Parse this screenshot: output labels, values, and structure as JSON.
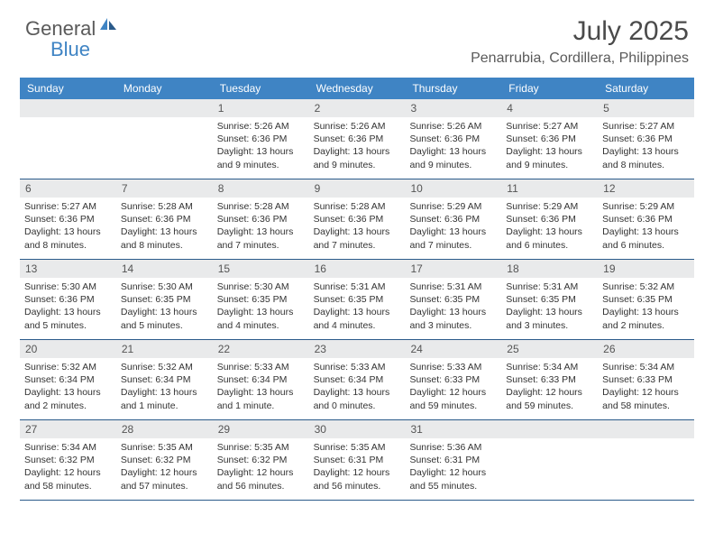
{
  "brand": {
    "part1": "General",
    "part2": "Blue"
  },
  "title": "July 2025",
  "location": "Penarrubia, Cordillera, Philippines",
  "colors": {
    "header_bg": "#3f84c4",
    "header_text": "#ffffff",
    "daynum_bg": "#e9eaeb",
    "rule": "#2a5a8a",
    "text": "#333333",
    "logo_gray": "#5a5a5a",
    "logo_blue": "#3f84c4"
  },
  "day_labels": [
    "Sunday",
    "Monday",
    "Tuesday",
    "Wednesday",
    "Thursday",
    "Friday",
    "Saturday"
  ],
  "weeks": [
    [
      null,
      null,
      {
        "n": "1",
        "sr": "5:26 AM",
        "ss": "6:36 PM",
        "dl": "13 hours and 9 minutes."
      },
      {
        "n": "2",
        "sr": "5:26 AM",
        "ss": "6:36 PM",
        "dl": "13 hours and 9 minutes."
      },
      {
        "n": "3",
        "sr": "5:26 AM",
        "ss": "6:36 PM",
        "dl": "13 hours and 9 minutes."
      },
      {
        "n": "4",
        "sr": "5:27 AM",
        "ss": "6:36 PM",
        "dl": "13 hours and 9 minutes."
      },
      {
        "n": "5",
        "sr": "5:27 AM",
        "ss": "6:36 PM",
        "dl": "13 hours and 8 minutes."
      }
    ],
    [
      {
        "n": "6",
        "sr": "5:27 AM",
        "ss": "6:36 PM",
        "dl": "13 hours and 8 minutes."
      },
      {
        "n": "7",
        "sr": "5:28 AM",
        "ss": "6:36 PM",
        "dl": "13 hours and 8 minutes."
      },
      {
        "n": "8",
        "sr": "5:28 AM",
        "ss": "6:36 PM",
        "dl": "13 hours and 7 minutes."
      },
      {
        "n": "9",
        "sr": "5:28 AM",
        "ss": "6:36 PM",
        "dl": "13 hours and 7 minutes."
      },
      {
        "n": "10",
        "sr": "5:29 AM",
        "ss": "6:36 PM",
        "dl": "13 hours and 7 minutes."
      },
      {
        "n": "11",
        "sr": "5:29 AM",
        "ss": "6:36 PM",
        "dl": "13 hours and 6 minutes."
      },
      {
        "n": "12",
        "sr": "5:29 AM",
        "ss": "6:36 PM",
        "dl": "13 hours and 6 minutes."
      }
    ],
    [
      {
        "n": "13",
        "sr": "5:30 AM",
        "ss": "6:36 PM",
        "dl": "13 hours and 5 minutes."
      },
      {
        "n": "14",
        "sr": "5:30 AM",
        "ss": "6:35 PM",
        "dl": "13 hours and 5 minutes."
      },
      {
        "n": "15",
        "sr": "5:30 AM",
        "ss": "6:35 PM",
        "dl": "13 hours and 4 minutes."
      },
      {
        "n": "16",
        "sr": "5:31 AM",
        "ss": "6:35 PM",
        "dl": "13 hours and 4 minutes."
      },
      {
        "n": "17",
        "sr": "5:31 AM",
        "ss": "6:35 PM",
        "dl": "13 hours and 3 minutes."
      },
      {
        "n": "18",
        "sr": "5:31 AM",
        "ss": "6:35 PM",
        "dl": "13 hours and 3 minutes."
      },
      {
        "n": "19",
        "sr": "5:32 AM",
        "ss": "6:35 PM",
        "dl": "13 hours and 2 minutes."
      }
    ],
    [
      {
        "n": "20",
        "sr": "5:32 AM",
        "ss": "6:34 PM",
        "dl": "13 hours and 2 minutes."
      },
      {
        "n": "21",
        "sr": "5:32 AM",
        "ss": "6:34 PM",
        "dl": "13 hours and 1 minute."
      },
      {
        "n": "22",
        "sr": "5:33 AM",
        "ss": "6:34 PM",
        "dl": "13 hours and 1 minute."
      },
      {
        "n": "23",
        "sr": "5:33 AM",
        "ss": "6:34 PM",
        "dl": "13 hours and 0 minutes."
      },
      {
        "n": "24",
        "sr": "5:33 AM",
        "ss": "6:33 PM",
        "dl": "12 hours and 59 minutes."
      },
      {
        "n": "25",
        "sr": "5:34 AM",
        "ss": "6:33 PM",
        "dl": "12 hours and 59 minutes."
      },
      {
        "n": "26",
        "sr": "5:34 AM",
        "ss": "6:33 PM",
        "dl": "12 hours and 58 minutes."
      }
    ],
    [
      {
        "n": "27",
        "sr": "5:34 AM",
        "ss": "6:32 PM",
        "dl": "12 hours and 58 minutes."
      },
      {
        "n": "28",
        "sr": "5:35 AM",
        "ss": "6:32 PM",
        "dl": "12 hours and 57 minutes."
      },
      {
        "n": "29",
        "sr": "5:35 AM",
        "ss": "6:32 PM",
        "dl": "12 hours and 56 minutes."
      },
      {
        "n": "30",
        "sr": "5:35 AM",
        "ss": "6:31 PM",
        "dl": "12 hours and 56 minutes."
      },
      {
        "n": "31",
        "sr": "5:36 AM",
        "ss": "6:31 PM",
        "dl": "12 hours and 55 minutes."
      },
      null,
      null
    ]
  ],
  "labels": {
    "sunrise": "Sunrise:",
    "sunset": "Sunset:",
    "daylight": "Daylight:"
  }
}
